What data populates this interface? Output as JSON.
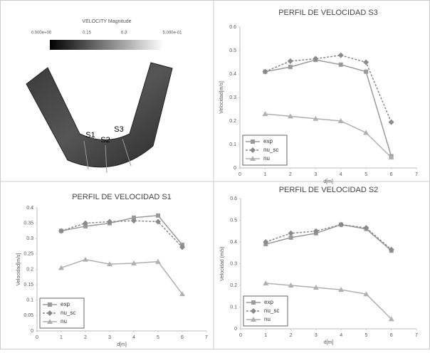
{
  "figure": {
    "colorbar_title": "VELOCITY Magnitude",
    "colorbar_ticks": [
      "0.000e+00",
      "0.15",
      "0.3",
      "5.000e-01"
    ],
    "section_labels": [
      "S1",
      "S2",
      "S3"
    ]
  },
  "chart_data": [
    {
      "type": "line",
      "title": "PERFIL DE VELOCIDAD S3",
      "x_label": "d[m]",
      "y_label": "Velocidad[m/s]",
      "x": [
        1,
        2,
        3,
        4,
        5,
        6
      ],
      "xlim": [
        0,
        7
      ],
      "xticks": [
        0,
        1,
        2,
        3,
        4,
        5,
        6,
        7
      ],
      "ylim": [
        0,
        0.6
      ],
      "yticks": [
        0,
        0.1,
        0.2,
        0.3,
        0.4,
        0.5,
        0.6
      ],
      "grid": false,
      "legend": "lower left",
      "series": [
        {
          "name": "exp",
          "color": "#9a9a9a",
          "dash": "solid",
          "marker": "square",
          "values": [
            0.41,
            0.43,
            0.46,
            0.44,
            0.41,
            0.05
          ]
        },
        {
          "name": "nu_sc",
          "color": "#8a8a8a",
          "dash": "dotted",
          "marker": "diamond",
          "values": [
            0.41,
            0.455,
            0.465,
            0.48,
            0.45,
            0.195
          ]
        },
        {
          "name": "nu",
          "color": "#b0b0b0",
          "dash": "solid",
          "marker": "triangle",
          "values": [
            0.23,
            0.22,
            0.21,
            0.2,
            0.15,
            0.045
          ]
        }
      ]
    },
    {
      "type": "line",
      "title": "PERFIL DE VELOCIDAD S1",
      "x_label": "d[m]",
      "y_label": "Velocidad[m/s]",
      "x": [
        1,
        2,
        3,
        4,
        5,
        6
      ],
      "xlim": [
        0,
        7
      ],
      "xticks": [
        0,
        1,
        2,
        3,
        4,
        5,
        6,
        7
      ],
      "ylim": [
        0,
        0.4
      ],
      "yticks": [
        0,
        0.05,
        0.1,
        0.15,
        0.2,
        0.25,
        0.3,
        0.35,
        0.4
      ],
      "grid": false,
      "legend": "lower left",
      "series": [
        {
          "name": "exp",
          "color": "#9a9a9a",
          "dash": "solid",
          "marker": "square",
          "values": [
            0.325,
            0.34,
            0.35,
            0.368,
            0.375,
            0.28
          ]
        },
        {
          "name": "nu_sc",
          "color": "#8a8a8a",
          "dash": "dotted",
          "marker": "diamond",
          "values": [
            0.325,
            0.35,
            0.355,
            0.358,
            0.355,
            0.272
          ]
        },
        {
          "name": "nu",
          "color": "#b0b0b0",
          "dash": "solid",
          "marker": "triangle",
          "values": [
            0.205,
            0.232,
            0.217,
            0.22,
            0.225,
            0.12
          ]
        }
      ]
    },
    {
      "type": "line",
      "title": "PERFIL DE VELOCIDAD S2",
      "x_label": "d[m]",
      "y_label": "Velocidad (m/s)",
      "x": [
        1,
        2,
        3,
        4,
        5,
        6
      ],
      "xlim": [
        0,
        7
      ],
      "xticks": [
        0,
        1,
        2,
        3,
        4,
        5,
        6,
        7
      ],
      "ylim": [
        0,
        0.6
      ],
      "yticks": [
        0,
        0.1,
        0.2,
        0.3,
        0.4,
        0.5,
        0.6
      ],
      "grid": false,
      "legend": "lower left",
      "series": [
        {
          "name": "exp",
          "color": "#9a9a9a",
          "dash": "solid",
          "marker": "square",
          "values": [
            0.39,
            0.42,
            0.44,
            0.48,
            0.46,
            0.36
          ]
        },
        {
          "name": "nu_sc",
          "color": "#8a8a8a",
          "dash": "dotted",
          "marker": "diamond",
          "values": [
            0.4,
            0.44,
            0.45,
            0.48,
            0.465,
            0.365
          ]
        },
        {
          "name": "nu",
          "color": "#b0b0b0",
          "dash": "solid",
          "marker": "triangle",
          "values": [
            0.21,
            0.2,
            0.19,
            0.18,
            0.16,
            0.045
          ]
        }
      ]
    }
  ]
}
